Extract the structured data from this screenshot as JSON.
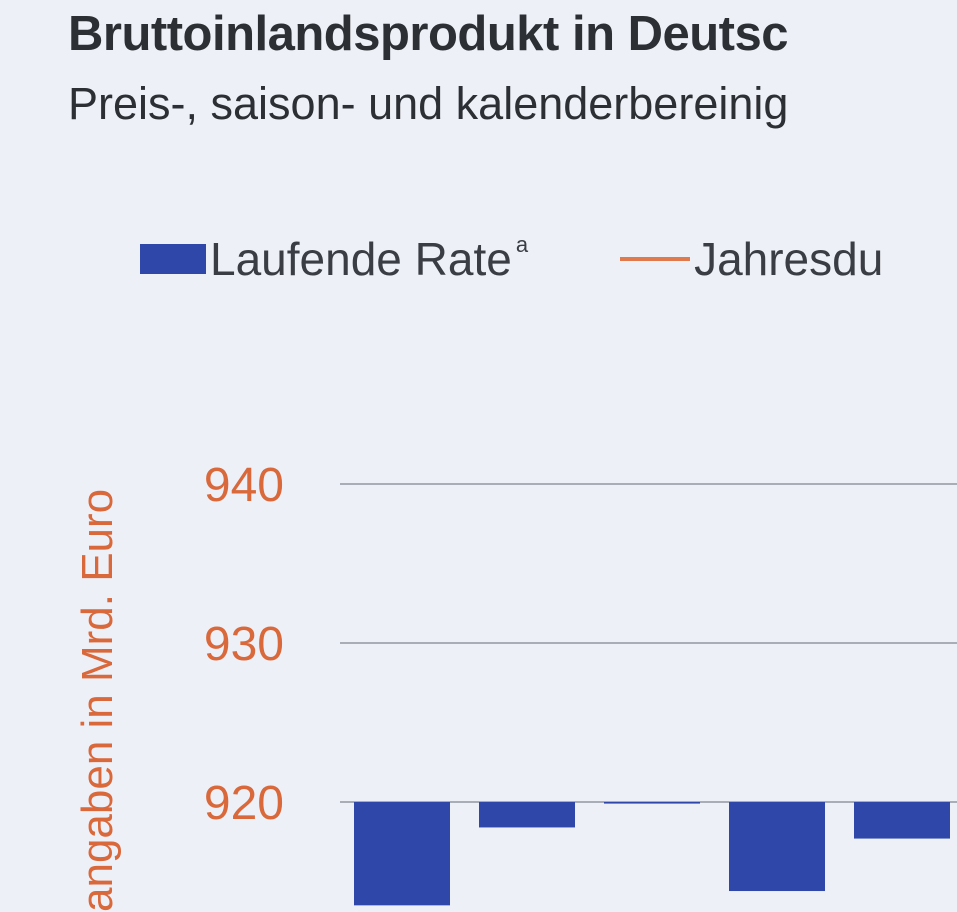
{
  "chart_data": {
    "type": "bar",
    "title": "Bruttoinlandsprodukt in Deutsc",
    "subtitle": "Preis-, saison- und kalenderbereinig",
    "legend": [
      {
        "label": "Laufende Rate",
        "marker": "a",
        "kind": "bar",
        "color": "#2e47a8"
      },
      {
        "label": "Jahresdu",
        "kind": "line",
        "color": "#e07a4c"
      }
    ],
    "ylabel": "angaben in Mrd. Euro",
    "yticks": [
      920,
      930,
      940
    ],
    "ylim": [
      913.5,
      942
    ],
    "baseline": 920,
    "series": [
      {
        "name": "Laufende Rate",
        "values": [
          913.5,
          918.4,
          919.9,
          914.4,
          917.7
        ]
      }
    ],
    "colors": {
      "bar": "#2e47a8",
      "line": "#e07a4c",
      "grid": "#a9adb5",
      "tick": "#d9683a",
      "text": "#2c3035"
    }
  }
}
